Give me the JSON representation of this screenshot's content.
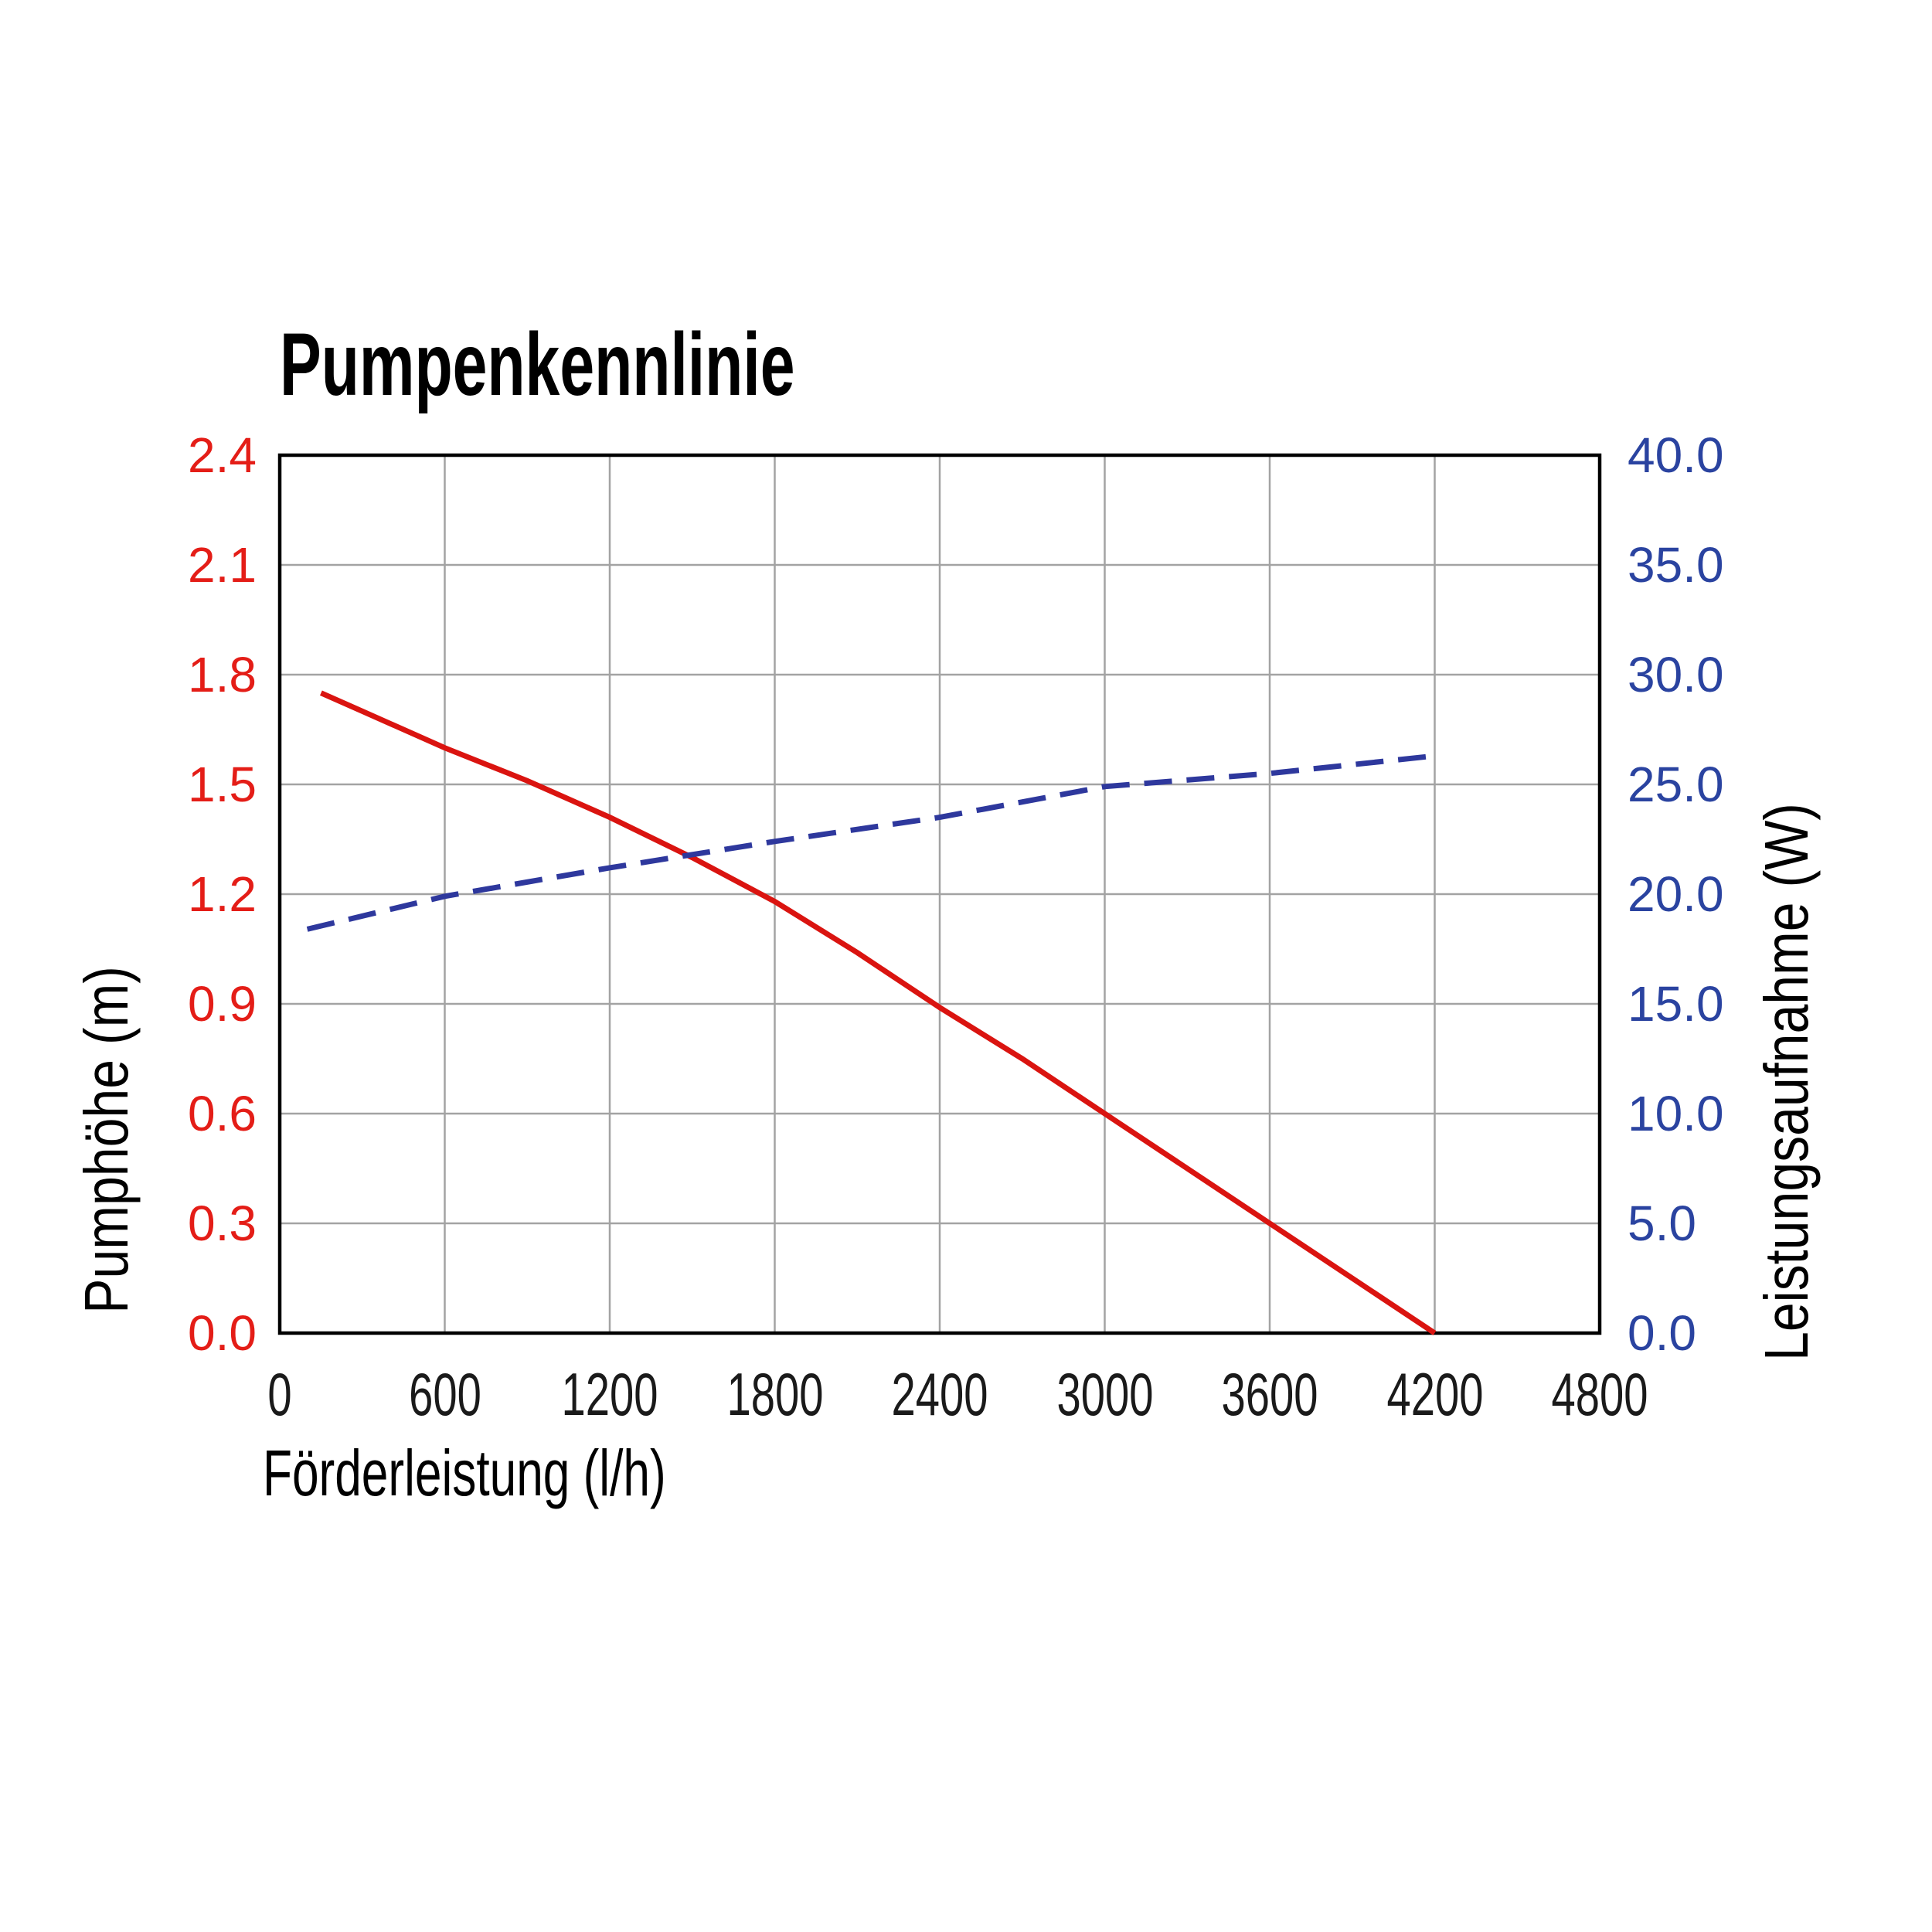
{
  "chart_data": {
    "type": "line",
    "title": "Pumpenkennlinie",
    "xlabel": "Förderleistung (l/h)",
    "xlim": [
      0,
      4800
    ],
    "x_tick_step": 600,
    "x_ticks": [
      "0",
      "600",
      "1200",
      "1800",
      "2400",
      "3000",
      "3600",
      "4200",
      "4800"
    ],
    "grid": true,
    "legend": "none",
    "colors": {
      "grid": "#a3a3a3",
      "frame": "#000000",
      "x_tick_text": "#1a1a1a",
      "title_text": "#000000"
    },
    "axes": {
      "left": {
        "label": "Pumphöhe (m)",
        "lim": [
          0.0,
          2.4
        ],
        "tick_step": 0.3,
        "ticks": [
          "2.4",
          "2.1",
          "1.8",
          "1.5",
          "1.2",
          "0.9",
          "0.6",
          "0.3",
          "0.0"
        ],
        "color": "#e41d17"
      },
      "right": {
        "label": "Leistungsaufnahme (W)",
        "lim": [
          0.0,
          40.0
        ],
        "tick_step": 5.0,
        "ticks": [
          "40.0",
          "35.0",
          "30.0",
          "25.0",
          "20.0",
          "15.0",
          "10.0",
          "5.0",
          "0.0"
        ],
        "tick_color": "#2a43a0",
        "color": "#1b2d92"
      }
    },
    "series": [
      {
        "name": "Pumphöhe (m)",
        "axis": "left",
        "style": "solid",
        "color": "#da1410",
        "points": [
          [
            150,
            1.75
          ],
          [
            300,
            1.7
          ],
          [
            600,
            1.6
          ],
          [
            900,
            1.51
          ],
          [
            1200,
            1.41
          ],
          [
            1500,
            1.3
          ],
          [
            1800,
            1.18
          ],
          [
            2100,
            1.04
          ],
          [
            2400,
            0.89
          ],
          [
            2700,
            0.75
          ],
          [
            3000,
            0.6
          ],
          [
            3300,
            0.45
          ],
          [
            3600,
            0.3
          ],
          [
            3900,
            0.15
          ],
          [
            4200,
            0.0
          ]
        ]
      },
      {
        "name": "Leistungsaufnahme (W)",
        "axis": "right",
        "style": "dashed",
        "color": "#2e389d",
        "points": [
          [
            100,
            18.4
          ],
          [
            600,
            19.9
          ],
          [
            1200,
            21.2
          ],
          [
            1800,
            22.4
          ],
          [
            2400,
            23.5
          ],
          [
            3000,
            24.9
          ],
          [
            3600,
            25.5
          ],
          [
            4200,
            26.3
          ]
        ]
      }
    ]
  }
}
